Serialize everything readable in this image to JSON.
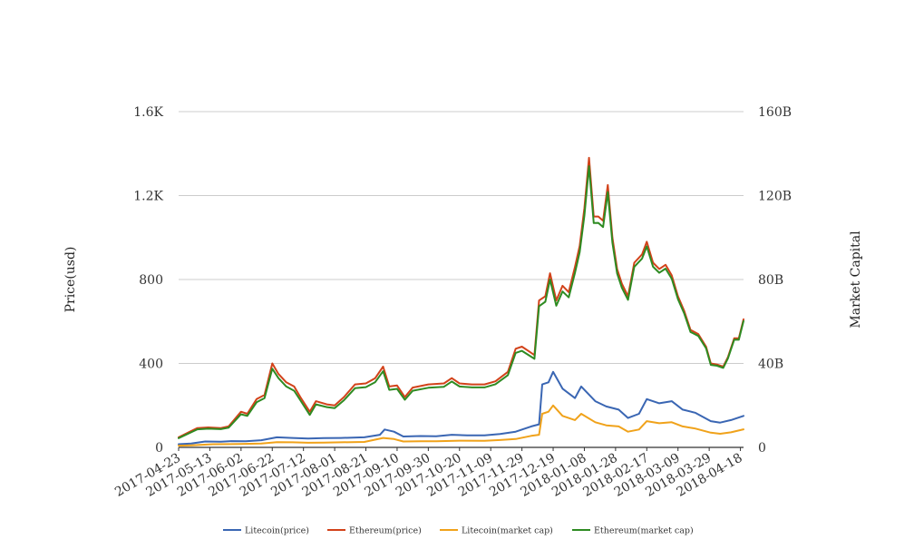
{
  "chart_data": {
    "type": "line",
    "title": "",
    "ylabel_left": "Price(usd)",
    "ylabel_right": "Market Capital",
    "x_tick_labels": [
      "2017-04-23",
      "2017-05-13",
      "2017-06-02",
      "2017-06-22",
      "2017-07-12",
      "2017-08-01",
      "2017-08-21",
      "2017-09-10",
      "2017-09-30",
      "2017-10-20",
      "2017-11-09",
      "2017-11-29",
      "2017-12-19",
      "2018-01-08",
      "2018-01-28",
      "2018-02-17",
      "2018-03-09",
      "2018-03-29",
      "2018-04-18"
    ],
    "x_range": [
      "2017-04-23",
      "2018-04-20"
    ],
    "y_left": {
      "range": [
        0,
        1600
      ],
      "ticks": [
        0,
        400,
        800,
        1200,
        1600
      ],
      "tick_labels": [
        "0",
        "400",
        "800",
        "1.2K",
        "1.6K"
      ]
    },
    "y_right": {
      "range": [
        0,
        160
      ],
      "unit": "B",
      "ticks": [
        0,
        40,
        80,
        120,
        160
      ],
      "tick_labels": [
        "0",
        "40B",
        "80B",
        "120B",
        "160B"
      ]
    },
    "grid": true,
    "legend_position": "bottom",
    "series": [
      {
        "name": "Litecoin(price)",
        "color": "#3a66b3",
        "axis": "left",
        "points": [
          [
            "2017-04-23",
            15
          ],
          [
            "2017-05-01",
            18
          ],
          [
            "2017-05-10",
            28
          ],
          [
            "2017-05-20",
            27
          ],
          [
            "2017-05-27",
            30
          ],
          [
            "2017-06-05",
            29
          ],
          [
            "2017-06-15",
            34
          ],
          [
            "2017-06-25",
            48
          ],
          [
            "2017-07-05",
            45
          ],
          [
            "2017-07-15",
            42
          ],
          [
            "2017-07-25",
            44
          ],
          [
            "2017-08-05",
            45
          ],
          [
            "2017-08-20",
            48
          ],
          [
            "2017-08-30",
            60
          ],
          [
            "2017-09-02",
            85
          ],
          [
            "2017-09-08",
            75
          ],
          [
            "2017-09-14",
            52
          ],
          [
            "2017-09-25",
            54
          ],
          [
            "2017-10-05",
            53
          ],
          [
            "2017-10-15",
            60
          ],
          [
            "2017-10-25",
            57
          ],
          [
            "2017-11-05",
            57
          ],
          [
            "2017-11-15",
            64
          ],
          [
            "2017-11-25",
            75
          ],
          [
            "2017-12-05",
            100
          ],
          [
            "2017-12-10",
            110
          ],
          [
            "2017-12-12",
            300
          ],
          [
            "2017-12-16",
            310
          ],
          [
            "2017-12-19",
            360
          ],
          [
            "2017-12-25",
            280
          ],
          [
            "2018-01-02",
            235
          ],
          [
            "2018-01-06",
            290
          ],
          [
            "2018-01-15",
            220
          ],
          [
            "2018-01-22",
            195
          ],
          [
            "2018-01-30",
            180
          ],
          [
            "2018-02-05",
            140
          ],
          [
            "2018-02-12",
            160
          ],
          [
            "2018-02-17",
            230
          ],
          [
            "2018-02-25",
            210
          ],
          [
            "2018-03-05",
            220
          ],
          [
            "2018-03-12",
            180
          ],
          [
            "2018-03-20",
            165
          ],
          [
            "2018-03-30",
            125
          ],
          [
            "2018-04-05",
            118
          ],
          [
            "2018-04-12",
            130
          ],
          [
            "2018-04-20",
            150
          ]
        ]
      },
      {
        "name": "Ethereum(price)",
        "color": "#d2421a",
        "axis": "left",
        "points": [
          [
            "2017-04-23",
            48
          ],
          [
            "2017-05-01",
            78
          ],
          [
            "2017-05-05",
            92
          ],
          [
            "2017-05-12",
            95
          ],
          [
            "2017-05-20",
            92
          ],
          [
            "2017-05-25",
            100
          ],
          [
            "2017-06-02",
            170
          ],
          [
            "2017-06-06",
            160
          ],
          [
            "2017-06-12",
            230
          ],
          [
            "2017-06-17",
            250
          ],
          [
            "2017-06-22",
            400
          ],
          [
            "2017-06-26",
            350
          ],
          [
            "2017-07-01",
            310
          ],
          [
            "2017-07-06",
            290
          ],
          [
            "2017-07-10",
            240
          ],
          [
            "2017-07-16",
            170
          ],
          [
            "2017-07-20",
            220
          ],
          [
            "2017-07-27",
            205
          ],
          [
            "2017-08-01",
            200
          ],
          [
            "2017-08-07",
            240
          ],
          [
            "2017-08-14",
            300
          ],
          [
            "2017-08-21",
            305
          ],
          [
            "2017-08-27",
            330
          ],
          [
            "2017-09-01",
            385
          ],
          [
            "2017-09-05",
            290
          ],
          [
            "2017-09-10",
            295
          ],
          [
            "2017-09-15",
            240
          ],
          [
            "2017-09-20",
            285
          ],
          [
            "2017-09-30",
            300
          ],
          [
            "2017-10-10",
            305
          ],
          [
            "2017-10-15",
            330
          ],
          [
            "2017-10-20",
            305
          ],
          [
            "2017-10-28",
            300
          ],
          [
            "2017-11-05",
            300
          ],
          [
            "2017-11-12",
            315
          ],
          [
            "2017-11-20",
            360
          ],
          [
            "2017-11-25",
            470
          ],
          [
            "2017-11-29",
            480
          ],
          [
            "2017-12-03",
            460
          ],
          [
            "2017-12-07",
            440
          ],
          [
            "2017-12-10",
            700
          ],
          [
            "2017-12-14",
            720
          ],
          [
            "2017-12-17",
            830
          ],
          [
            "2017-12-21",
            700
          ],
          [
            "2017-12-25",
            770
          ],
          [
            "2017-12-29",
            740
          ],
          [
            "2018-01-02",
            860
          ],
          [
            "2018-01-05",
            960
          ],
          [
            "2018-01-08",
            1140
          ],
          [
            "2018-01-11",
            1380
          ],
          [
            "2018-01-14",
            1100
          ],
          [
            "2018-01-17",
            1100
          ],
          [
            "2018-01-20",
            1080
          ],
          [
            "2018-01-23",
            1250
          ],
          [
            "2018-01-26",
            1000
          ],
          [
            "2018-01-29",
            850
          ],
          [
            "2018-02-01",
            780
          ],
          [
            "2018-02-05",
            720
          ],
          [
            "2018-02-09",
            880
          ],
          [
            "2018-02-14",
            920
          ],
          [
            "2018-02-17",
            980
          ],
          [
            "2018-02-21",
            880
          ],
          [
            "2018-02-25",
            850
          ],
          [
            "2018-03-01",
            870
          ],
          [
            "2018-03-05",
            820
          ],
          [
            "2018-03-09",
            720
          ],
          [
            "2018-03-13",
            650
          ],
          [
            "2018-03-17",
            560
          ],
          [
            "2018-03-22",
            540
          ],
          [
            "2018-03-27",
            480
          ],
          [
            "2018-03-30",
            400
          ],
          [
            "2018-04-03",
            395
          ],
          [
            "2018-04-07",
            385
          ],
          [
            "2018-04-10",
            430
          ],
          [
            "2018-04-14",
            520
          ],
          [
            "2018-04-17",
            520
          ],
          [
            "2018-04-20",
            610
          ]
        ]
      },
      {
        "name": "Litecoin(market cap)",
        "color": "#f0a21a",
        "axis": "right",
        "points": [
          [
            "2017-04-23",
            0.8
          ],
          [
            "2017-05-01",
            1.0
          ],
          [
            "2017-05-15",
            1.5
          ],
          [
            "2017-06-01",
            1.6
          ],
          [
            "2017-06-15",
            1.8
          ],
          [
            "2017-06-25",
            2.5
          ],
          [
            "2017-07-05",
            2.4
          ],
          [
            "2017-07-15",
            2.2
          ],
          [
            "2017-07-25",
            2.3
          ],
          [
            "2017-08-05",
            2.4
          ],
          [
            "2017-08-20",
            2.6
          ],
          [
            "2017-09-01",
            4.5
          ],
          [
            "2017-09-08",
            4.0
          ],
          [
            "2017-09-14",
            2.8
          ],
          [
            "2017-09-25",
            2.9
          ],
          [
            "2017-10-05",
            2.9
          ],
          [
            "2017-10-20",
            3.2
          ],
          [
            "2017-11-05",
            3.1
          ],
          [
            "2017-11-15",
            3.5
          ],
          [
            "2017-11-25",
            4.0
          ],
          [
            "2017-12-05",
            5.5
          ],
          [
            "2017-12-10",
            6.0
          ],
          [
            "2017-12-12",
            16.0
          ],
          [
            "2017-12-16",
            17.0
          ],
          [
            "2017-12-19",
            20.0
          ],
          [
            "2017-12-25",
            15.0
          ],
          [
            "2018-01-02",
            13.0
          ],
          [
            "2018-01-06",
            16.0
          ],
          [
            "2018-01-15",
            12.0
          ],
          [
            "2018-01-22",
            10.5
          ],
          [
            "2018-01-30",
            10.0
          ],
          [
            "2018-02-05",
            7.5
          ],
          [
            "2018-02-12",
            8.5
          ],
          [
            "2018-02-17",
            12.5
          ],
          [
            "2018-02-25",
            11.5
          ],
          [
            "2018-03-05",
            12.0
          ],
          [
            "2018-03-12",
            10.0
          ],
          [
            "2018-03-20",
            9.0
          ],
          [
            "2018-03-30",
            7.0
          ],
          [
            "2018-04-05",
            6.5
          ],
          [
            "2018-04-12",
            7.2
          ],
          [
            "2018-04-20",
            8.6
          ]
        ]
      },
      {
        "name": "Ethereum(market cap)",
        "color": "#2e8b22",
        "axis": "right",
        "points": [
          [
            "2017-04-23",
            4.4
          ],
          [
            "2017-05-01",
            7.2
          ],
          [
            "2017-05-05",
            8.6
          ],
          [
            "2017-05-12",
            8.9
          ],
          [
            "2017-05-20",
            8.7
          ],
          [
            "2017-05-25",
            9.4
          ],
          [
            "2017-06-02",
            15.8
          ],
          [
            "2017-06-06",
            15.0
          ],
          [
            "2017-06-12",
            21.5
          ],
          [
            "2017-06-17",
            23.5
          ],
          [
            "2017-06-22",
            37.5
          ],
          [
            "2017-06-26",
            33.0
          ],
          [
            "2017-07-01",
            29.0
          ],
          [
            "2017-07-06",
            27.0
          ],
          [
            "2017-07-10",
            22.5
          ],
          [
            "2017-07-16",
            15.5
          ],
          [
            "2017-07-20",
            20.5
          ],
          [
            "2017-07-27",
            19.2
          ],
          [
            "2017-08-01",
            18.7
          ],
          [
            "2017-08-07",
            22.5
          ],
          [
            "2017-08-14",
            28.2
          ],
          [
            "2017-08-21",
            28.7
          ],
          [
            "2017-08-27",
            31.1
          ],
          [
            "2017-09-01",
            36.3
          ],
          [
            "2017-09-05",
            27.4
          ],
          [
            "2017-09-10",
            27.9
          ],
          [
            "2017-09-15",
            22.7
          ],
          [
            "2017-09-20",
            27.0
          ],
          [
            "2017-09-30",
            28.4
          ],
          [
            "2017-10-10",
            28.9
          ],
          [
            "2017-10-15",
            31.4
          ],
          [
            "2017-10-20",
            29.0
          ],
          [
            "2017-10-28",
            28.6
          ],
          [
            "2017-11-05",
            28.6
          ],
          [
            "2017-11-12",
            30.1
          ],
          [
            "2017-11-20",
            34.4
          ],
          [
            "2017-11-25",
            45.0
          ],
          [
            "2017-11-29",
            46.0
          ],
          [
            "2017-12-03",
            44.1
          ],
          [
            "2017-12-07",
            42.2
          ],
          [
            "2017-12-10",
            67.3
          ],
          [
            "2017-12-14",
            69.4
          ],
          [
            "2017-12-17",
            80.0
          ],
          [
            "2017-12-21",
            67.5
          ],
          [
            "2017-12-25",
            74.3
          ],
          [
            "2017-12-29",
            71.5
          ],
          [
            "2018-01-02",
            83.2
          ],
          [
            "2018-01-05",
            93.0
          ],
          [
            "2018-01-08",
            110.5
          ],
          [
            "2018-01-11",
            134.0
          ],
          [
            "2018-01-14",
            106.9
          ],
          [
            "2018-01-17",
            107.0
          ],
          [
            "2018-01-20",
            105.0
          ],
          [
            "2018-01-23",
            121.7
          ],
          [
            "2018-01-26",
            97.5
          ],
          [
            "2018-01-29",
            82.9
          ],
          [
            "2018-02-01",
            76.1
          ],
          [
            "2018-02-05",
            70.3
          ],
          [
            "2018-02-09",
            86.0
          ],
          [
            "2018-02-14",
            90.0
          ],
          [
            "2018-02-17",
            95.8
          ],
          [
            "2018-02-21",
            86.1
          ],
          [
            "2018-02-25",
            83.2
          ],
          [
            "2018-03-01",
            85.2
          ],
          [
            "2018-03-05",
            80.4
          ],
          [
            "2018-03-09",
            70.6
          ],
          [
            "2018-03-13",
            63.8
          ],
          [
            "2018-03-17",
            55.0
          ],
          [
            "2018-03-22",
            53.1
          ],
          [
            "2018-03-27",
            47.2
          ],
          [
            "2018-03-30",
            39.3
          ],
          [
            "2018-04-03",
            38.9
          ],
          [
            "2018-04-07",
            37.9
          ],
          [
            "2018-04-10",
            42.4
          ],
          [
            "2018-04-14",
            51.3
          ],
          [
            "2018-04-17",
            51.3
          ],
          [
            "2018-04-20",
            60.2
          ]
        ]
      }
    ]
  }
}
